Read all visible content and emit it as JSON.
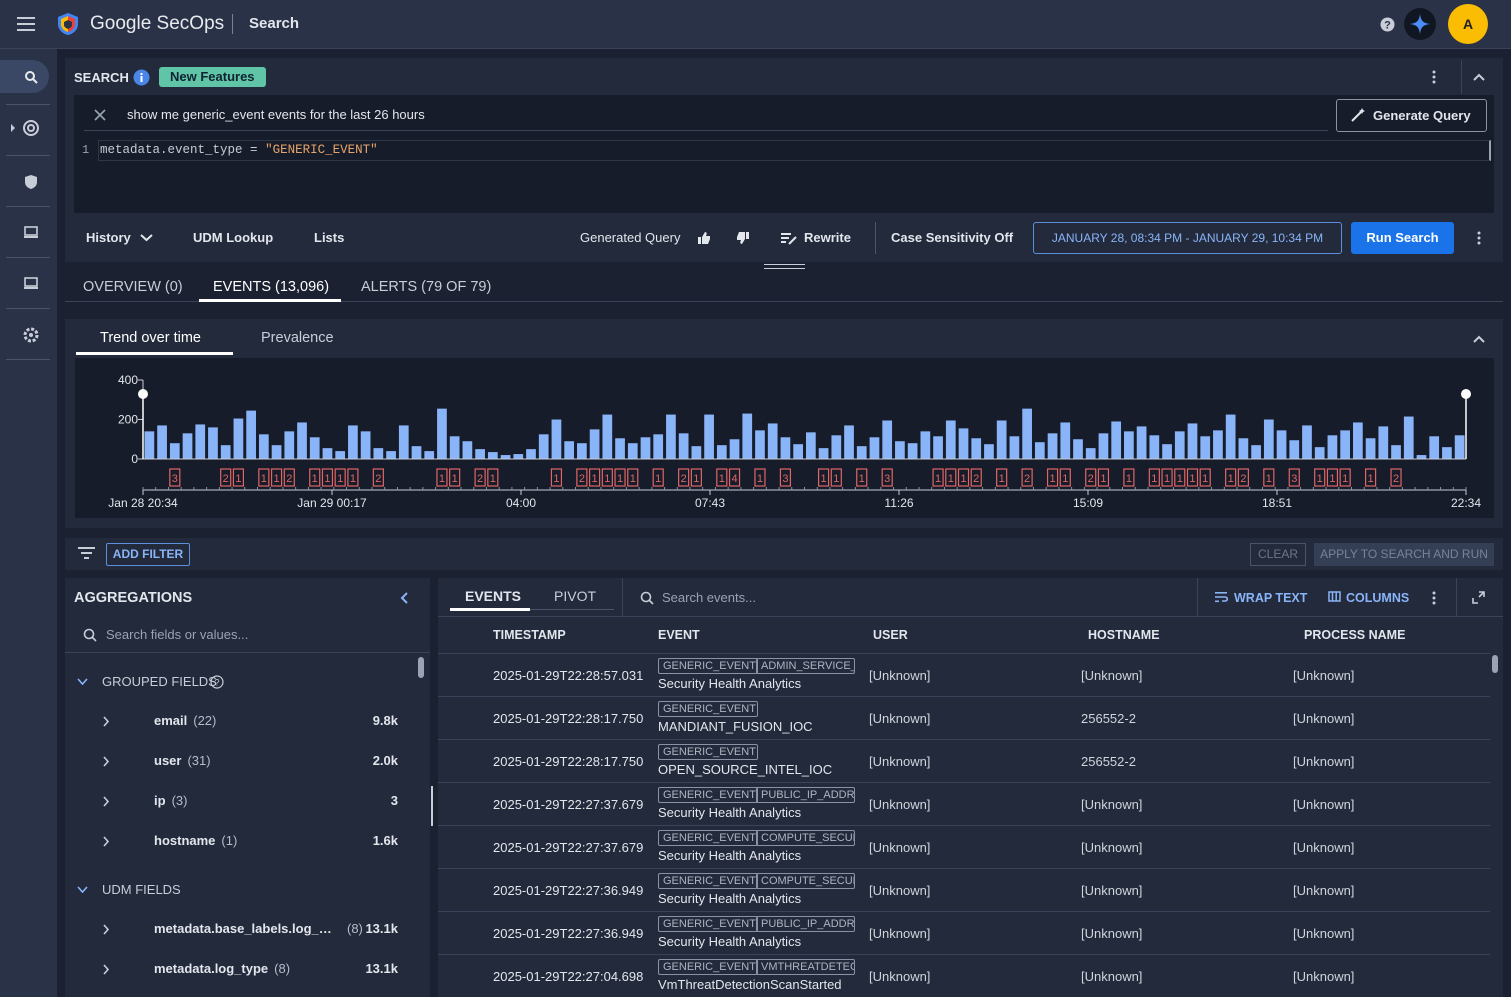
{
  "header": {
    "brand": "Google SecOps",
    "page": "Search",
    "avatar": "A"
  },
  "search": {
    "label": "SEARCH",
    "badge": "New Features",
    "prompt": "show me generic_event events for the last 26 hours",
    "generate": "Generate Query",
    "line": 1,
    "query": {
      "field": "metadata.event_type",
      "operator": "=",
      "value": "\"GENERIC_EVENT\""
    }
  },
  "toolbar": {
    "history": "History",
    "udm_lookup": "UDM Lookup",
    "lists": "Lists",
    "generated": "Generated Query",
    "rewrite": "Rewrite",
    "case": "Case Sensitivity Off",
    "range": "JANUARY 28, 08:34 PM - JANUARY 29, 10:34 PM",
    "run": "Run Search"
  },
  "tabs": [
    "OVERVIEW (0)",
    "EVENTS (13,096)",
    "ALERTS (79 OF 79)"
  ],
  "trend_tabs": [
    "Trend over time",
    "Prevalence"
  ],
  "chart_data": {
    "type": "bar",
    "color": "#8ab4f8",
    "alert_color": "#e06666",
    "values": [
      140,
      170,
      80,
      130,
      175,
      160,
      70,
      205,
      245,
      125,
      70,
      140,
      185,
      110,
      55,
      40,
      170,
      140,
      55,
      40,
      170,
      65,
      40,
      255,
      115,
      90,
      50,
      35,
      20,
      25,
      50,
      125,
      200,
      90,
      80,
      150,
      225,
      105,
      80,
      110,
      125,
      225,
      130,
      65,
      225,
      70,
      100,
      230,
      145,
      180,
      110,
      75,
      135,
      55,
      120,
      170,
      65,
      110,
      195,
      90,
      80,
      140,
      115,
      195,
      155,
      105,
      75,
      195,
      115,
      255,
      85,
      130,
      185,
      100,
      55,
      130,
      190,
      140,
      165,
      120,
      75,
      140,
      180,
      115,
      145,
      225,
      105,
      70,
      200,
      145,
      95,
      170,
      60,
      120,
      145,
      185,
      105,
      165,
      70,
      215,
      20,
      115,
      60,
      120
    ],
    "alerts": [
      null,
      null,
      3,
      null,
      null,
      null,
      2,
      1,
      null,
      1,
      1,
      2,
      null,
      1,
      1,
      1,
      1,
      null,
      2,
      null,
      null,
      null,
      null,
      1,
      1,
      null,
      2,
      1,
      null,
      null,
      null,
      null,
      1,
      null,
      2,
      1,
      1,
      1,
      1,
      null,
      1,
      null,
      2,
      1,
      null,
      1,
      4,
      null,
      1,
      null,
      3,
      null,
      null,
      1,
      1,
      null,
      1,
      null,
      3,
      null,
      null,
      null,
      1,
      1,
      1,
      2,
      null,
      1,
      null,
      2,
      null,
      1,
      1,
      null,
      2,
      1,
      null,
      1,
      null,
      1,
      1,
      1,
      1,
      1,
      null,
      1,
      2,
      null,
      1,
      null,
      3,
      null,
      1,
      1,
      1,
      null,
      1,
      null,
      2,
      null,
      null,
      null,
      null,
      null
    ],
    "ylim": [
      0,
      400
    ],
    "yticks": [
      0,
      200,
      400
    ],
    "xtick_labels": [
      "Jan 28 20:34",
      "Jan 29 00:17",
      "04:00",
      "07:43",
      "11:26",
      "15:09",
      "18:51",
      "22:34"
    ]
  },
  "filters": {
    "add": "ADD FILTER",
    "clear": "CLEAR",
    "apply": "APPLY TO SEARCH AND RUN"
  },
  "aggregations": {
    "title": "AGGREGATIONS",
    "search": "Search fields or values...",
    "groups": [
      {
        "name": "GROUPED FIELDS",
        "fields": [
          {
            "name": "email",
            "count": "(22)",
            "total": "9.8k"
          },
          {
            "name": "user",
            "count": "(31)",
            "total": "2.0k"
          },
          {
            "name": "ip",
            "count": "(3)",
            "total": "3"
          },
          {
            "name": "hostname",
            "count": "(1)",
            "total": "1.6k"
          }
        ]
      },
      {
        "name": "UDM FIELDS",
        "fields": [
          {
            "name": "metadata.base_labels.log_…",
            "count": "(8)",
            "total": "13.1k"
          },
          {
            "name": "metadata.log_type",
            "count": "(8)",
            "total": "13.1k"
          }
        ]
      }
    ]
  },
  "events": {
    "tabs": [
      "EVENTS",
      "PIVOT"
    ],
    "search": "Search events...",
    "wrap": "WRAP TEXT",
    "columns_button": "COLUMNS",
    "columns": [
      "TIMESTAMP",
      "EVENT",
      "USER",
      "HOSTNAME",
      "PROCESS NAME"
    ],
    "rows": [
      {
        "timestamp": "2025-01-29T22:28:57.031",
        "tags": [
          "GENERIC_EVENT",
          "ADMIN_SERVICE_"
        ],
        "event": "Security Health Analytics",
        "user": "[Unknown]",
        "hostname": "[Unknown]",
        "process": "[Unknown]"
      },
      {
        "timestamp": "2025-01-29T22:28:17.750",
        "tags": [
          "GENERIC_EVENT"
        ],
        "event": "MANDIANT_FUSION_IOC",
        "user": "[Unknown]",
        "hostname": "256552-2",
        "process": "[Unknown]"
      },
      {
        "timestamp": "2025-01-29T22:28:17.750",
        "tags": [
          "GENERIC_EVENT"
        ],
        "event": "OPEN_SOURCE_INTEL_IOC",
        "user": "[Unknown]",
        "hostname": "256552-2",
        "process": "[Unknown]"
      },
      {
        "timestamp": "2025-01-29T22:27:37.679",
        "tags": [
          "GENERIC_EVENT",
          "PUBLIC_IP_ADDR"
        ],
        "event": "Security Health Analytics",
        "user": "[Unknown]",
        "hostname": "[Unknown]",
        "process": "[Unknown]"
      },
      {
        "timestamp": "2025-01-29T22:27:37.679",
        "tags": [
          "GENERIC_EVENT",
          "COMPUTE_SECUR"
        ],
        "event": "Security Health Analytics",
        "user": "[Unknown]",
        "hostname": "[Unknown]",
        "process": "[Unknown]"
      },
      {
        "timestamp": "2025-01-29T22:27:36.949",
        "tags": [
          "GENERIC_EVENT",
          "COMPUTE_SECUR"
        ],
        "event": "Security Health Analytics",
        "user": "[Unknown]",
        "hostname": "[Unknown]",
        "process": "[Unknown]"
      },
      {
        "timestamp": "2025-01-29T22:27:36.949",
        "tags": [
          "GENERIC_EVENT",
          "PUBLIC_IP_ADDR"
        ],
        "event": "Security Health Analytics",
        "user": "[Unknown]",
        "hostname": "[Unknown]",
        "process": "[Unknown]"
      },
      {
        "timestamp": "2025-01-29T22:27:04.698",
        "tags": [
          "GENERIC_EVENT",
          "VMTHREATDETEC"
        ],
        "event": "VmThreatDetectionScanStarted",
        "user": "[Unknown]",
        "hostname": "[Unknown]",
        "process": "[Unknown]"
      }
    ]
  }
}
